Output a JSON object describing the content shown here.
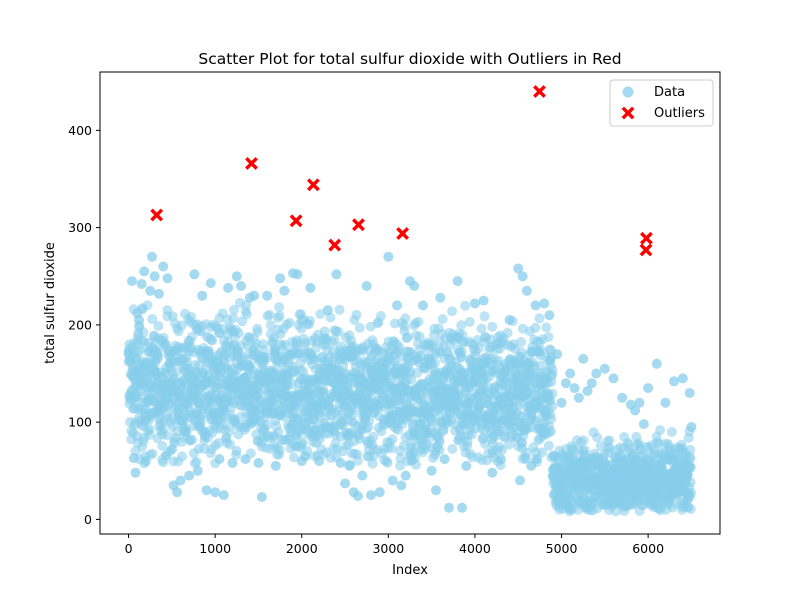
{
  "chart_data": {
    "type": "scatter",
    "title": "Scatter Plot for total sulfur dioxide with Outliers in Red",
    "xlabel": "Index",
    "ylabel": "total sulfur dioxide",
    "xlim": [
      -330,
      6830
    ],
    "ylim": [
      -15,
      460
    ],
    "xticks": [
      0,
      1000,
      2000,
      3000,
      4000,
      5000,
      6000
    ],
    "yticks": [
      0,
      100,
      200,
      300,
      400
    ],
    "legend_position": "top-right",
    "grid": false,
    "colors": {
      "data": "#87ceeb",
      "outliers": "#ff0000"
    },
    "legend": [
      {
        "label": "Data",
        "marker": "circle",
        "color": "#87ceeb"
      },
      {
        "label": "Outliers",
        "marker": "x",
        "color": "#ff0000"
      }
    ],
    "series": [
      {
        "name": "Data",
        "marker": "circle",
        "distribution": "dense band of approx. 6497 points; index 0–4898 mostly 60–240, index 4898–6497 mostly 10–100",
        "points": [
          [
            0,
            170
          ],
          [
            40,
            245
          ],
          [
            60,
            63
          ],
          [
            80,
            48
          ],
          [
            100,
            212
          ],
          [
            120,
            205
          ],
          [
            150,
            242
          ],
          [
            180,
            255
          ],
          [
            200,
            60
          ],
          [
            250,
            235
          ],
          [
            270,
            270
          ],
          [
            300,
            250
          ],
          [
            350,
            232
          ],
          [
            400,
            260
          ],
          [
            450,
            248
          ],
          [
            500,
            72
          ],
          [
            520,
            35
          ],
          [
            560,
            28
          ],
          [
            600,
            40
          ],
          [
            650,
            90
          ],
          [
            700,
            45
          ],
          [
            760,
            252
          ],
          [
            800,
            50
          ],
          [
            850,
            230
          ],
          [
            900,
            30
          ],
          [
            950,
            243
          ],
          [
            1000,
            28
          ],
          [
            1050,
            62
          ],
          [
            1100,
            25
          ],
          [
            1150,
            238
          ],
          [
            1200,
            58
          ],
          [
            1250,
            250
          ],
          [
            1300,
            240
          ],
          [
            1350,
            62
          ],
          [
            1400,
            228
          ],
          [
            1450,
            230
          ],
          [
            1500,
            58
          ],
          [
            1540,
            23
          ],
          [
            1600,
            230
          ],
          [
            1700,
            55
          ],
          [
            1750,
            248
          ],
          [
            1800,
            235
          ],
          [
            1900,
            253
          ],
          [
            1950,
            252
          ],
          [
            2000,
            60
          ],
          [
            2100,
            238
          ],
          [
            2200,
            60
          ],
          [
            2300,
            215
          ],
          [
            2400,
            252
          ],
          [
            2450,
            58
          ],
          [
            2500,
            37
          ],
          [
            2550,
            55
          ],
          [
            2600,
            28
          ],
          [
            2650,
            24
          ],
          [
            2700,
            45
          ],
          [
            2750,
            240
          ],
          [
            2800,
            25
          ],
          [
            2900,
            28
          ],
          [
            3000,
            270
          ],
          [
            3050,
            40
          ],
          [
            3100,
            220
          ],
          [
            3150,
            35
          ],
          [
            3200,
            45
          ],
          [
            3250,
            245
          ],
          [
            3300,
            240
          ],
          [
            3400,
            220
          ],
          [
            3500,
            50
          ],
          [
            3550,
            30
          ],
          [
            3600,
            228
          ],
          [
            3650,
            62
          ],
          [
            3700,
            12
          ],
          [
            3800,
            245
          ],
          [
            3850,
            12
          ],
          [
            3900,
            55
          ],
          [
            4000,
            222
          ],
          [
            4100,
            225
          ],
          [
            4200,
            48
          ],
          [
            4300,
            62
          ],
          [
            4400,
            205
          ],
          [
            4500,
            258
          ],
          [
            4520,
            40
          ],
          [
            4550,
            250
          ],
          [
            4600,
            235
          ],
          [
            4650,
            55
          ],
          [
            4700,
            220
          ],
          [
            4800,
            222
          ],
          [
            4860,
            210
          ],
          [
            4900,
            45
          ],
          [
            4950,
            170
          ],
          [
            5000,
            120
          ],
          [
            5050,
            140
          ],
          [
            5100,
            150
          ],
          [
            5150,
            135
          ],
          [
            5200,
            125
          ],
          [
            5250,
            165
          ],
          [
            5300,
            132
          ],
          [
            5350,
            140
          ],
          [
            5400,
            150
          ],
          [
            5500,
            155
          ],
          [
            5600,
            145
          ],
          [
            5700,
            125
          ],
          [
            5800,
            118
          ],
          [
            5850,
            112
          ],
          [
            5900,
            120
          ],
          [
            5950,
            98
          ],
          [
            6000,
            135
          ],
          [
            6100,
            160
          ],
          [
            6200,
            120
          ],
          [
            6300,
            142
          ],
          [
            6400,
            145
          ],
          [
            6480,
            130
          ],
          [
            6500,
            95
          ],
          [
            6450,
            20
          ]
        ]
      },
      {
        "name": "Outliers",
        "marker": "x",
        "points": [
          [
            325,
            313
          ],
          [
            1420,
            366
          ],
          [
            1935,
            307
          ],
          [
            2135,
            344
          ],
          [
            2380,
            282
          ],
          [
            2655,
            303
          ],
          [
            3165,
            294
          ],
          [
            4745,
            440
          ],
          [
            5975,
            277
          ],
          [
            5980,
            289
          ]
        ]
      }
    ]
  }
}
